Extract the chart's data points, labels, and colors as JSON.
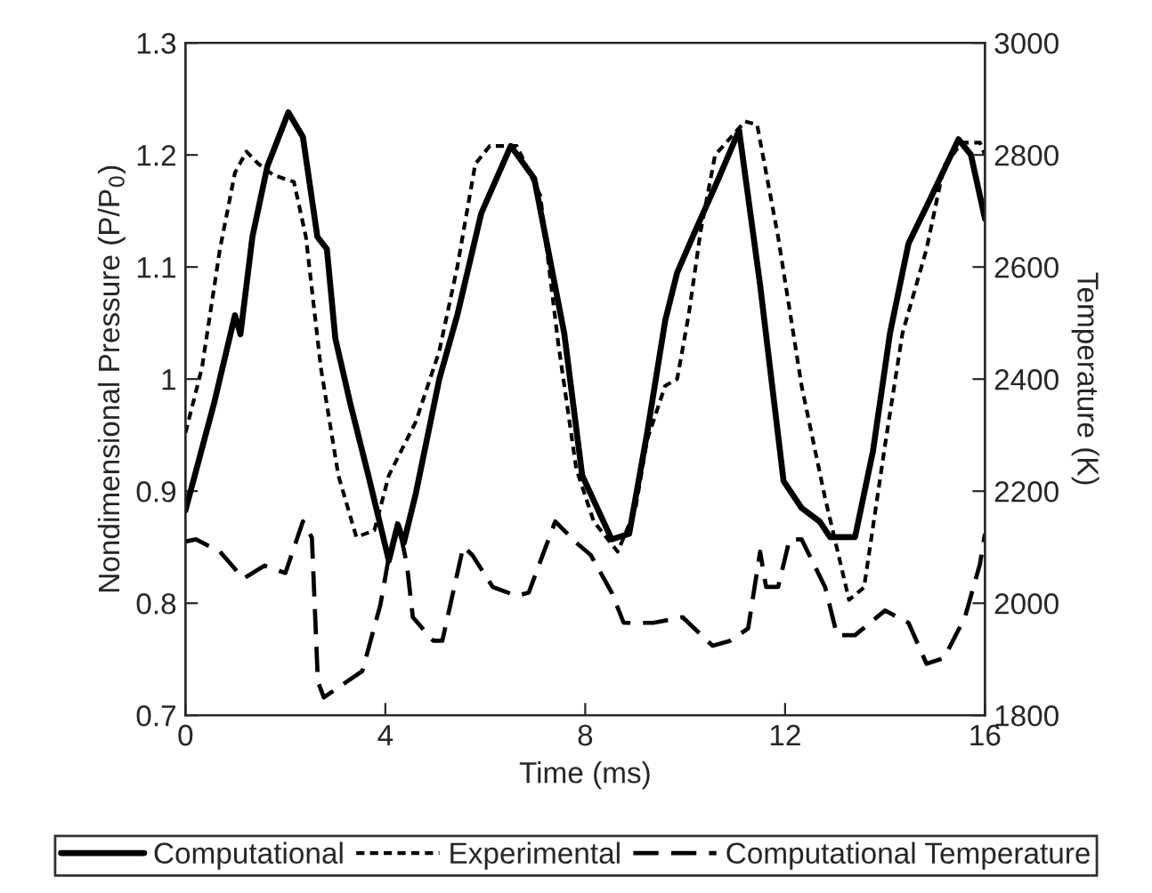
{
  "chart_data": {
    "type": "line",
    "xlabel": "Time (ms)",
    "ylabel": "Nondimensional Pressure (P/P$_{0}$)",
    "y2label": "Temperature (K)",
    "xlim": [
      0,
      16
    ],
    "xticks": [
      0,
      4,
      8,
      12,
      16
    ],
    "ylim": [
      0.7,
      1.3
    ],
    "yticks": [
      0.7,
      0.8,
      0.9,
      {
        "value": 1.0,
        "label": "1"
      },
      1.1,
      1.2,
      1.3
    ],
    "y2lim": [
      1800,
      3000
    ],
    "y2ticks": [
      1800,
      2000,
      2200,
      2400,
      2600,
      2800,
      3000
    ],
    "legend": "bottom",
    "grid": false,
    "series": [
      {
        "name": "Computational",
        "color": "#000000",
        "line_style": "solid",
        "x": [
          0,
          0.57,
          0.99,
          1.1,
          1.34,
          1.64,
          2.06,
          2.35,
          2.64,
          2.83,
          3.0,
          3.3,
          3.66,
          4.07,
          4.25,
          4.37,
          4.61,
          5.08,
          5.44,
          5.92,
          6.51,
          6.98,
          7.58,
          7.94,
          8.53,
          8.88,
          9.24,
          9.6,
          9.84,
          10.2,
          10.67,
          11.08,
          11.5,
          11.97,
          12.33,
          12.69,
          12.9,
          13.4,
          13.76,
          14.1,
          14.47,
          14.94,
          15.47,
          15.72,
          16
        ],
        "values": [
          0.883,
          0.978,
          1.057,
          1.04,
          1.127,
          1.19,
          1.238,
          1.216,
          1.127,
          1.116,
          1.036,
          0.978,
          0.914,
          0.838,
          0.87,
          0.854,
          0.898,
          1.0,
          1.057,
          1.148,
          1.208,
          1.179,
          1.041,
          0.914,
          0.857,
          0.862,
          0.952,
          1.052,
          1.095,
          1.132,
          1.179,
          1.222,
          1.084,
          0.909,
          0.885,
          0.873,
          0.859,
          0.859,
          0.936,
          1.041,
          1.121,
          1.164,
          1.214,
          1.2,
          1.143
        ]
      },
      {
        "name": "Experimental",
        "color": "#000000",
        "line_style": "dotted",
        "x": [
          0,
          0.33,
          0.69,
          0.99,
          1.22,
          1.46,
          1.76,
          2.17,
          2.41,
          2.71,
          3.06,
          3.42,
          3.78,
          4.07,
          4.61,
          5.08,
          5.44,
          5.8,
          6.09,
          6.63,
          7.1,
          7.46,
          7.82,
          8.17,
          8.65,
          9.0,
          9.24,
          9.6,
          9.84,
          10.07,
          10.31,
          10.6,
          11.2,
          11.44,
          11.86,
          12.33,
          12.8,
          13.28,
          13.58,
          14.0,
          14.35,
          14.83,
          15.18,
          15.54,
          15.9,
          16
        ],
        "values": [
          0.952,
          1.01,
          1.116,
          1.184,
          1.203,
          1.192,
          1.182,
          1.176,
          1.127,
          1.01,
          0.914,
          0.859,
          0.865,
          0.914,
          0.962,
          1.025,
          1.1,
          1.192,
          1.208,
          1.208,
          1.164,
          1.032,
          0.92,
          0.873,
          0.846,
          0.883,
          0.946,
          0.994,
          1.0,
          1.057,
          1.132,
          1.2,
          1.23,
          1.227,
          1.127,
          0.994,
          0.894,
          0.803,
          0.814,
          0.941,
          1.041,
          1.116,
          1.19,
          1.211,
          1.211,
          1.2
        ]
      },
      {
        "name": "Computational Temperature",
        "color": "#000000",
        "line_style": "dashed",
        "axis": "y2",
        "x": [
          0,
          0.21,
          0.69,
          1.16,
          1.58,
          2.0,
          2.35,
          2.53,
          2.65,
          2.77,
          3.54,
          3.9,
          4.07,
          4.25,
          4.43,
          4.55,
          4.96,
          5.14,
          5.56,
          5.74,
          6.15,
          6.63,
          6.87,
          7.4,
          7.82,
          8.11,
          8.53,
          8.77,
          9.36,
          9.95,
          10.55,
          10.9,
          11.26,
          11.5,
          11.62,
          11.86,
          12.09,
          12.33,
          12.8,
          13.04,
          13.4,
          14.0,
          14.47,
          14.83,
          15.18,
          15.6,
          15.9,
          16
        ],
        "values": [
          2110,
          2114,
          2092,
          2044,
          2067,
          2054,
          2146,
          2117,
          1860,
          1832,
          1879,
          1997,
          2082,
          2146,
          2070,
          1975,
          1933,
          1933,
          2101,
          2086,
          2029,
          2013,
          2019,
          2146,
          2108,
          2086,
          2019,
          1965,
          1965,
          1975,
          1924,
          1933,
          1955,
          2092,
          2029,
          2029,
          2114,
          2114,
          2029,
          1943,
          1943,
          1987,
          1965,
          1892,
          1902,
          1975,
          2070,
          2124
        ]
      }
    ]
  }
}
